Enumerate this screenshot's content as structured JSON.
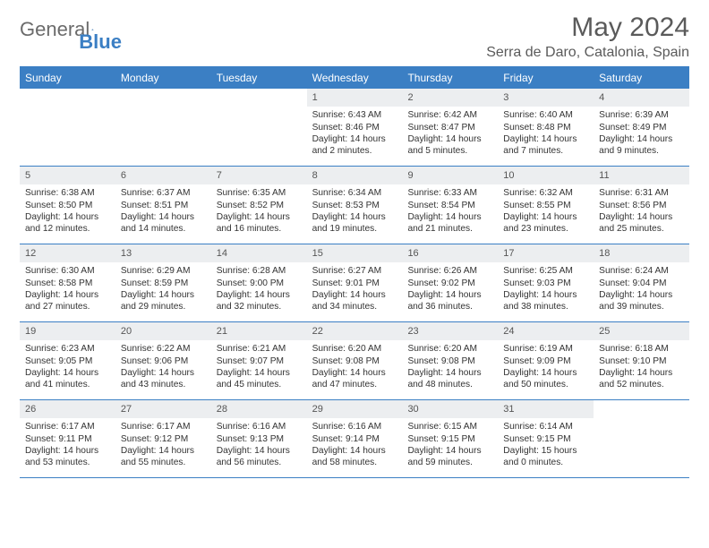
{
  "brand": {
    "part1": "General",
    "part2": "Blue"
  },
  "title": "May 2024",
  "location": "Serra de Daro, Catalonia, Spain",
  "colors": {
    "accent": "#3b7fc4",
    "header_bg": "#3b7fc4",
    "daynum_bg": "#eceef0",
    "text": "#333333"
  },
  "day_names": [
    "Sunday",
    "Monday",
    "Tuesday",
    "Wednesday",
    "Thursday",
    "Friday",
    "Saturday"
  ],
  "weeks": [
    [
      {
        "n": "",
        "lines": []
      },
      {
        "n": "",
        "lines": []
      },
      {
        "n": "",
        "lines": []
      },
      {
        "n": "1",
        "lines": [
          "Sunrise: 6:43 AM",
          "Sunset: 8:46 PM",
          "Daylight: 14 hours and 2 minutes."
        ]
      },
      {
        "n": "2",
        "lines": [
          "Sunrise: 6:42 AM",
          "Sunset: 8:47 PM",
          "Daylight: 14 hours and 5 minutes."
        ]
      },
      {
        "n": "3",
        "lines": [
          "Sunrise: 6:40 AM",
          "Sunset: 8:48 PM",
          "Daylight: 14 hours and 7 minutes."
        ]
      },
      {
        "n": "4",
        "lines": [
          "Sunrise: 6:39 AM",
          "Sunset: 8:49 PM",
          "Daylight: 14 hours and 9 minutes."
        ]
      }
    ],
    [
      {
        "n": "5",
        "lines": [
          "Sunrise: 6:38 AM",
          "Sunset: 8:50 PM",
          "Daylight: 14 hours and 12 minutes."
        ]
      },
      {
        "n": "6",
        "lines": [
          "Sunrise: 6:37 AM",
          "Sunset: 8:51 PM",
          "Daylight: 14 hours and 14 minutes."
        ]
      },
      {
        "n": "7",
        "lines": [
          "Sunrise: 6:35 AM",
          "Sunset: 8:52 PM",
          "Daylight: 14 hours and 16 minutes."
        ]
      },
      {
        "n": "8",
        "lines": [
          "Sunrise: 6:34 AM",
          "Sunset: 8:53 PM",
          "Daylight: 14 hours and 19 minutes."
        ]
      },
      {
        "n": "9",
        "lines": [
          "Sunrise: 6:33 AM",
          "Sunset: 8:54 PM",
          "Daylight: 14 hours and 21 minutes."
        ]
      },
      {
        "n": "10",
        "lines": [
          "Sunrise: 6:32 AM",
          "Sunset: 8:55 PM",
          "Daylight: 14 hours and 23 minutes."
        ]
      },
      {
        "n": "11",
        "lines": [
          "Sunrise: 6:31 AM",
          "Sunset: 8:56 PM",
          "Daylight: 14 hours and 25 minutes."
        ]
      }
    ],
    [
      {
        "n": "12",
        "lines": [
          "Sunrise: 6:30 AM",
          "Sunset: 8:58 PM",
          "Daylight: 14 hours and 27 minutes."
        ]
      },
      {
        "n": "13",
        "lines": [
          "Sunrise: 6:29 AM",
          "Sunset: 8:59 PM",
          "Daylight: 14 hours and 29 minutes."
        ]
      },
      {
        "n": "14",
        "lines": [
          "Sunrise: 6:28 AM",
          "Sunset: 9:00 PM",
          "Daylight: 14 hours and 32 minutes."
        ]
      },
      {
        "n": "15",
        "lines": [
          "Sunrise: 6:27 AM",
          "Sunset: 9:01 PM",
          "Daylight: 14 hours and 34 minutes."
        ]
      },
      {
        "n": "16",
        "lines": [
          "Sunrise: 6:26 AM",
          "Sunset: 9:02 PM",
          "Daylight: 14 hours and 36 minutes."
        ]
      },
      {
        "n": "17",
        "lines": [
          "Sunrise: 6:25 AM",
          "Sunset: 9:03 PM",
          "Daylight: 14 hours and 38 minutes."
        ]
      },
      {
        "n": "18",
        "lines": [
          "Sunrise: 6:24 AM",
          "Sunset: 9:04 PM",
          "Daylight: 14 hours and 39 minutes."
        ]
      }
    ],
    [
      {
        "n": "19",
        "lines": [
          "Sunrise: 6:23 AM",
          "Sunset: 9:05 PM",
          "Daylight: 14 hours and 41 minutes."
        ]
      },
      {
        "n": "20",
        "lines": [
          "Sunrise: 6:22 AM",
          "Sunset: 9:06 PM",
          "Daylight: 14 hours and 43 minutes."
        ]
      },
      {
        "n": "21",
        "lines": [
          "Sunrise: 6:21 AM",
          "Sunset: 9:07 PM",
          "Daylight: 14 hours and 45 minutes."
        ]
      },
      {
        "n": "22",
        "lines": [
          "Sunrise: 6:20 AM",
          "Sunset: 9:08 PM",
          "Daylight: 14 hours and 47 minutes."
        ]
      },
      {
        "n": "23",
        "lines": [
          "Sunrise: 6:20 AM",
          "Sunset: 9:08 PM",
          "Daylight: 14 hours and 48 minutes."
        ]
      },
      {
        "n": "24",
        "lines": [
          "Sunrise: 6:19 AM",
          "Sunset: 9:09 PM",
          "Daylight: 14 hours and 50 minutes."
        ]
      },
      {
        "n": "25",
        "lines": [
          "Sunrise: 6:18 AM",
          "Sunset: 9:10 PM",
          "Daylight: 14 hours and 52 minutes."
        ]
      }
    ],
    [
      {
        "n": "26",
        "lines": [
          "Sunrise: 6:17 AM",
          "Sunset: 9:11 PM",
          "Daylight: 14 hours and 53 minutes."
        ]
      },
      {
        "n": "27",
        "lines": [
          "Sunrise: 6:17 AM",
          "Sunset: 9:12 PM",
          "Daylight: 14 hours and 55 minutes."
        ]
      },
      {
        "n": "28",
        "lines": [
          "Sunrise: 6:16 AM",
          "Sunset: 9:13 PM",
          "Daylight: 14 hours and 56 minutes."
        ]
      },
      {
        "n": "29",
        "lines": [
          "Sunrise: 6:16 AM",
          "Sunset: 9:14 PM",
          "Daylight: 14 hours and 58 minutes."
        ]
      },
      {
        "n": "30",
        "lines": [
          "Sunrise: 6:15 AM",
          "Sunset: 9:15 PM",
          "Daylight: 14 hours and 59 minutes."
        ]
      },
      {
        "n": "31",
        "lines": [
          "Sunrise: 6:14 AM",
          "Sunset: 9:15 PM",
          "Daylight: 15 hours and 0 minutes."
        ]
      },
      {
        "n": "",
        "lines": []
      }
    ]
  ]
}
